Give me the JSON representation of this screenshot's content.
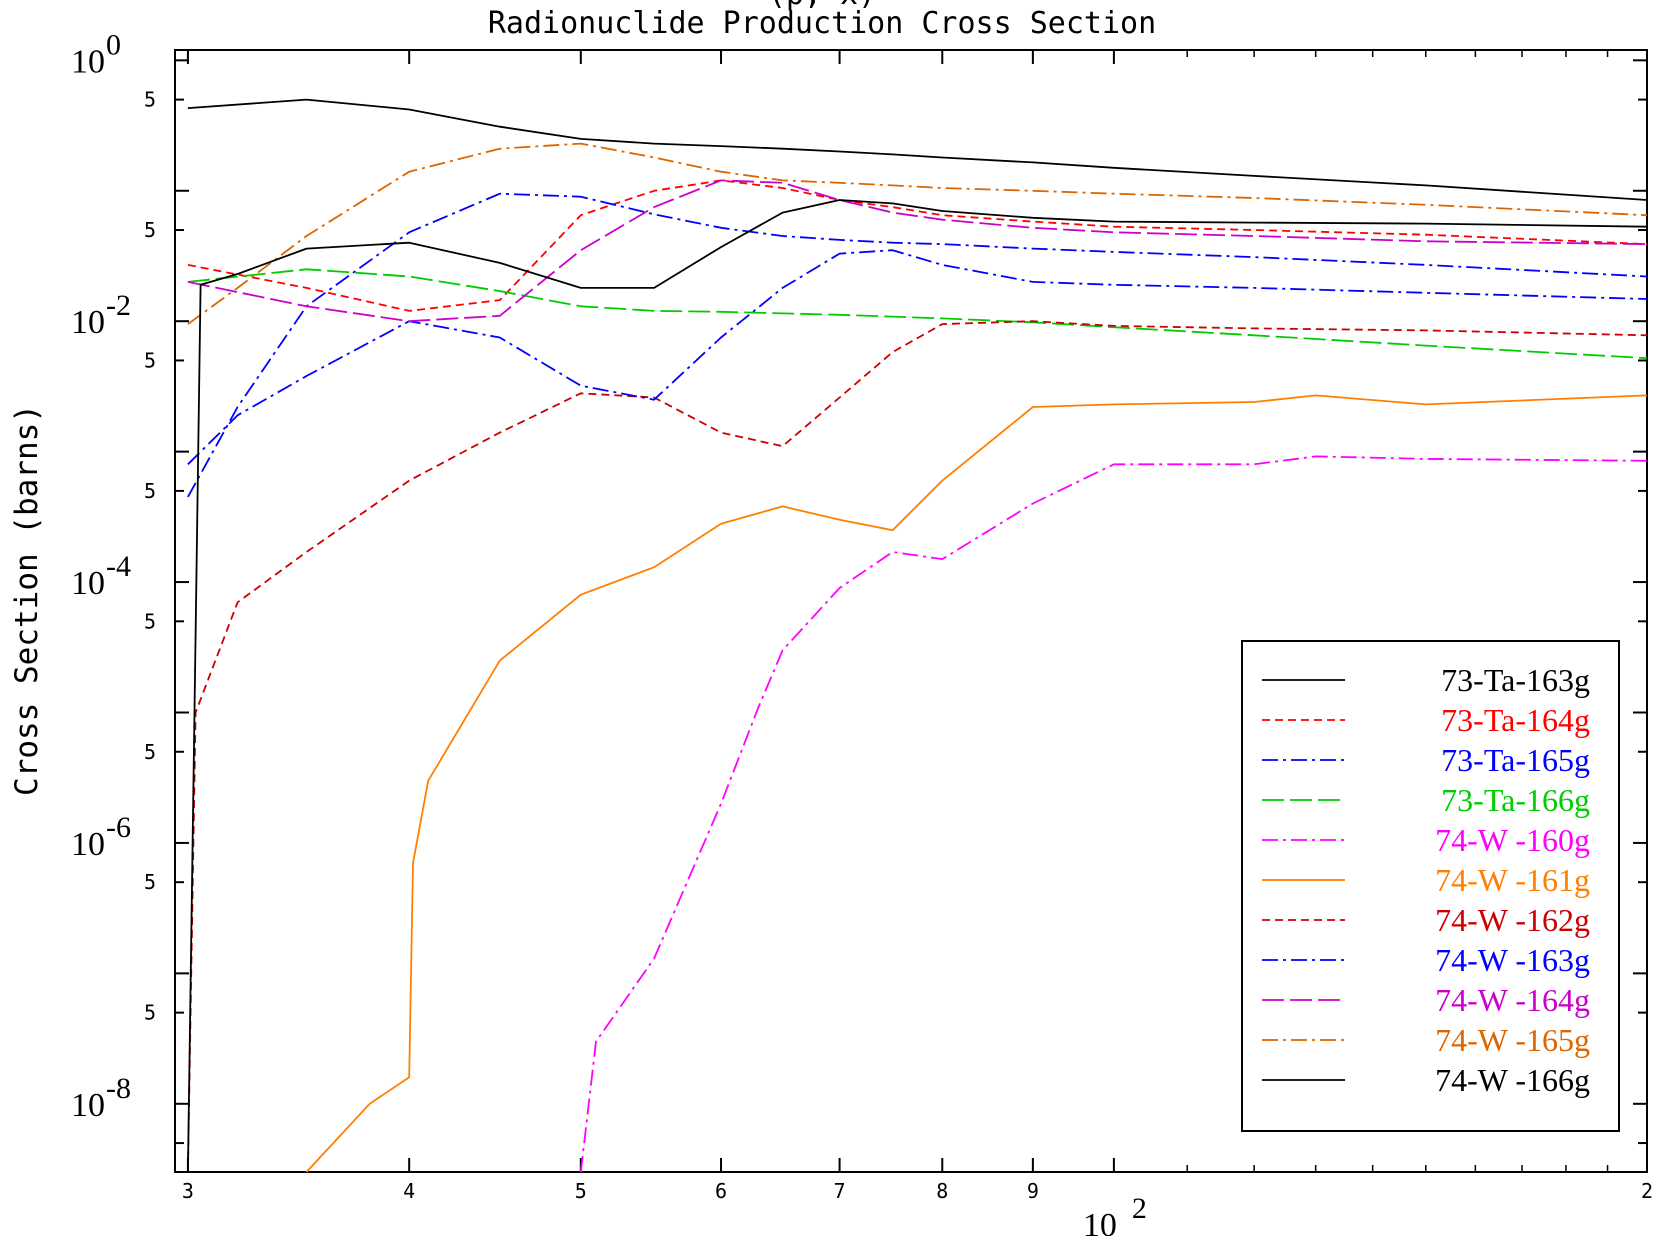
{
  "chart_data": {
    "type": "line",
    "title_top": "(p, x)",
    "title": "Radionuclide Production Cross Section",
    "xlabel": "",
    "ylabel": "Cross Section (barns)",
    "x_scale": "log",
    "y_scale": "log",
    "xlim": [
      29.5,
      200
    ],
    "ylim": [
      3e-09,
      1.2
    ],
    "x_tick_labels": [
      {
        "value": 30,
        "label": "3"
      },
      {
        "value": 40,
        "label": "4"
      },
      {
        "value": 50,
        "label": "5"
      },
      {
        "value": 60,
        "label": "6"
      },
      {
        "value": 70,
        "label": "7"
      },
      {
        "value": 80,
        "label": "8"
      },
      {
        "value": 90,
        "label": "9"
      },
      {
        "value": 200,
        "label": "2"
      }
    ],
    "x_decade_label": {
      "value": 100,
      "base": "10",
      "exp": "2"
    },
    "y_decade_labels": [
      {
        "value": 1,
        "base": "10",
        "exp": "0"
      },
      {
        "value": 0.01,
        "base": "10",
        "exp": "-2"
      },
      {
        "value": 0.0001,
        "base": "10",
        "exp": "-4"
      },
      {
        "value": 1e-06,
        "base": "10",
        "exp": "-6"
      },
      {
        "value": 1e-08,
        "base": "10",
        "exp": "-8"
      }
    ],
    "y_five_labels": [
      0.5,
      0.05,
      0.005,
      0.0005,
      5e-05,
      5e-06,
      5e-07,
      5e-08
    ],
    "y_five_text": "5",
    "legend_position": "bottom-right",
    "series": [
      {
        "name": "73-Ta-163g",
        "color": "#000000",
        "dash": "solid",
        "x": [
          30,
          35,
          40,
          45,
          50,
          55,
          60,
          65,
          70,
          75,
          80,
          90,
          100,
          120,
          150,
          200
        ],
        "y": [
          0.43,
          0.5,
          0.42,
          0.31,
          0.25,
          0.23,
          0.22,
          0.21,
          0.2,
          0.19,
          0.18,
          0.165,
          0.15,
          0.13,
          0.11,
          0.085
        ]
      },
      {
        "name": "73-Ta-164g",
        "color": "#ff0000",
        "dash": "short",
        "x": [
          30,
          35,
          40,
          45,
          50,
          55,
          60,
          65,
          70,
          75,
          80,
          90,
          100,
          120,
          150,
          200
        ],
        "y": [
          0.027,
          0.018,
          0.012,
          0.0145,
          0.065,
          0.1,
          0.12,
          0.105,
          0.085,
          0.075,
          0.065,
          0.058,
          0.053,
          0.05,
          0.046,
          0.039
        ]
      },
      {
        "name": "73-Ta-165g",
        "color": "#0000ff",
        "dash": "dashdot",
        "x": [
          30,
          32,
          35,
          40,
          45,
          50,
          55,
          60,
          65,
          70,
          75,
          80,
          90,
          100,
          120,
          150,
          200
        ],
        "y": [
          0.00045,
          0.0022,
          0.013,
          0.048,
          0.095,
          0.09,
          0.066,
          0.052,
          0.045,
          0.042,
          0.04,
          0.039,
          0.036,
          0.034,
          0.031,
          0.027,
          0.022
        ]
      },
      {
        "name": "73-Ta-166g",
        "color": "#00cc00",
        "dash": "long",
        "x": [
          30,
          35,
          40,
          45,
          50,
          55,
          60,
          70,
          80,
          90,
          100,
          120,
          150,
          200
        ],
        "y": [
          0.02,
          0.025,
          0.022,
          0.017,
          0.013,
          0.012,
          0.0118,
          0.0112,
          0.0105,
          0.0098,
          0.009,
          0.0078,
          0.0065,
          0.0052
        ]
      },
      {
        "name": "74-W -160g",
        "color": "#ff00ff",
        "dash": "dashdot",
        "x": [
          50,
          51,
          55,
          60,
          63,
          65,
          70,
          75,
          80,
          90,
          100,
          120,
          130,
          150,
          200
        ],
        "y": [
          3e-09,
          3e-08,
          1.3e-07,
          2e-06,
          1.1e-05,
          3e-05,
          9e-05,
          0.00017,
          0.00015,
          0.0004,
          0.0008,
          0.0008,
          0.00092,
          0.00088,
          0.00085
        ]
      },
      {
        "name": "74-W -161g",
        "color": "#ff8000",
        "dash": "solid",
        "x": [
          35,
          38,
          40,
          40.2,
          41,
          45,
          50,
          55,
          60,
          65,
          70,
          75,
          80,
          90,
          100,
          120,
          130,
          150,
          200
        ],
        "y": [
          3e-09,
          1e-08,
          1.6e-08,
          7e-07,
          3e-06,
          2.5e-05,
          8e-05,
          0.00013,
          0.00028,
          0.00038,
          0.0003,
          0.00025,
          0.0006,
          0.0022,
          0.0023,
          0.0024,
          0.0027,
          0.0023,
          0.0027
        ]
      },
      {
        "name": "74-W -162g",
        "color": "#cc0000",
        "dash": "short",
        "x": [
          30,
          30.3,
          32,
          35,
          40,
          45,
          50,
          55,
          60,
          65,
          70,
          75,
          80,
          90,
          100,
          120,
          150,
          200
        ],
        "y": [
          3e-09,
          1e-05,
          7e-05,
          0.00017,
          0.0006,
          0.0014,
          0.0028,
          0.0026,
          0.0014,
          0.0011,
          0.0026,
          0.0058,
          0.0095,
          0.01,
          0.0092,
          0.0088,
          0.0085,
          0.0078
        ]
      },
      {
        "name": "74-W -163g",
        "color": "#0000ff",
        "dash": "dashdot",
        "x": [
          30,
          32,
          35,
          40,
          45,
          50,
          55,
          60,
          65,
          70,
          75,
          80,
          90,
          100,
          120,
          150,
          200
        ],
        "y": [
          0.0008,
          0.0019,
          0.0038,
          0.01,
          0.0075,
          0.0032,
          0.0025,
          0.0075,
          0.018,
          0.033,
          0.035,
          0.027,
          0.02,
          0.019,
          0.018,
          0.0165,
          0.0148
        ]
      },
      {
        "name": "74-W -164g",
        "color": "#cc00cc",
        "dash": "long",
        "x": [
          30,
          35,
          40,
          45,
          50,
          55,
          60,
          65,
          70,
          75,
          80,
          90,
          100,
          120,
          150,
          200
        ],
        "y": [
          0.02,
          0.013,
          0.01,
          0.011,
          0.035,
          0.075,
          0.12,
          0.115,
          0.085,
          0.068,
          0.06,
          0.052,
          0.048,
          0.045,
          0.041,
          0.039
        ]
      },
      {
        "name": "74-W -165g",
        "color": "#dd6600",
        "dash": "dashdot",
        "x": [
          30,
          32,
          35,
          40,
          45,
          50,
          55,
          60,
          65,
          70,
          75,
          80,
          90,
          100,
          120,
          150,
          200
        ],
        "y": [
          0.0095,
          0.018,
          0.045,
          0.14,
          0.21,
          0.23,
          0.18,
          0.14,
          0.12,
          0.115,
          0.11,
          0.105,
          0.1,
          0.095,
          0.088,
          0.078,
          0.065
        ]
      },
      {
        "name": "74-W -166g",
        "color": "#000000",
        "dash": "solid",
        "x": [
          30,
          30.5,
          32,
          35,
          40,
          45,
          50,
          55,
          60,
          65,
          70,
          75,
          80,
          90,
          100,
          120,
          150,
          200
        ],
        "y": [
          3e-09,
          0.019,
          0.023,
          0.036,
          0.04,
          0.028,
          0.018,
          0.018,
          0.037,
          0.068,
          0.085,
          0.08,
          0.07,
          0.062,
          0.058,
          0.057,
          0.056,
          0.053
        ]
      }
    ]
  }
}
